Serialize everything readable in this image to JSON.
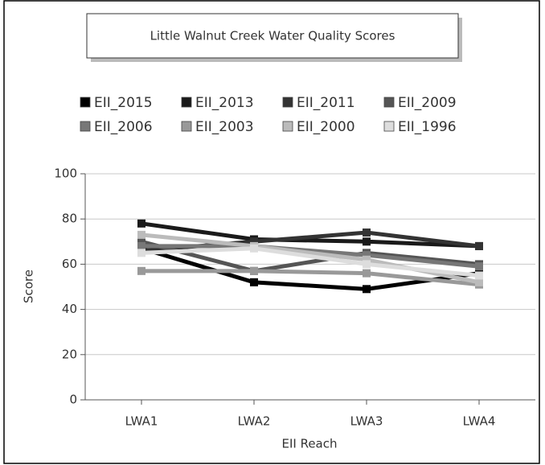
{
  "chart_data": {
    "type": "line",
    "title": "Little Walnut Creek Water Quality Scores",
    "x_label": "EII Reach",
    "y_label": "Score",
    "categories": [
      "LWA1",
      "LWA2",
      "LWA3",
      "LWA4"
    ],
    "series": [
      {
        "name": "EII_2015",
        "color": "#000000",
        "values": [
          67,
          52,
          49,
          56
        ]
      },
      {
        "name": "EII_2013",
        "color": "#1a1a1a",
        "values": [
          78,
          71,
          70,
          68
        ]
      },
      {
        "name": "EII_2011",
        "color": "#333333",
        "values": [
          66,
          70,
          74,
          68
        ]
      },
      {
        "name": "EII_2009",
        "color": "#555555",
        "values": [
          70,
          57,
          65,
          60
        ]
      },
      {
        "name": "EII_2006",
        "color": "#777777",
        "values": [
          68,
          68,
          64,
          59
        ]
      },
      {
        "name": "EII_2003",
        "color": "#999999",
        "values": [
          57,
          57,
          56,
          51
        ]
      },
      {
        "name": "EII_2000",
        "color": "#bbbbbb",
        "values": [
          73,
          68,
          62,
          52
        ]
      },
      {
        "name": "EII_1996",
        "color": "#dddddd",
        "values": [
          65,
          67,
          60,
          55
        ]
      }
    ],
    "ylim": [
      0,
      100
    ],
    "yticks": [
      0,
      20,
      40,
      60,
      80,
      100
    ],
    "grid": true
  }
}
